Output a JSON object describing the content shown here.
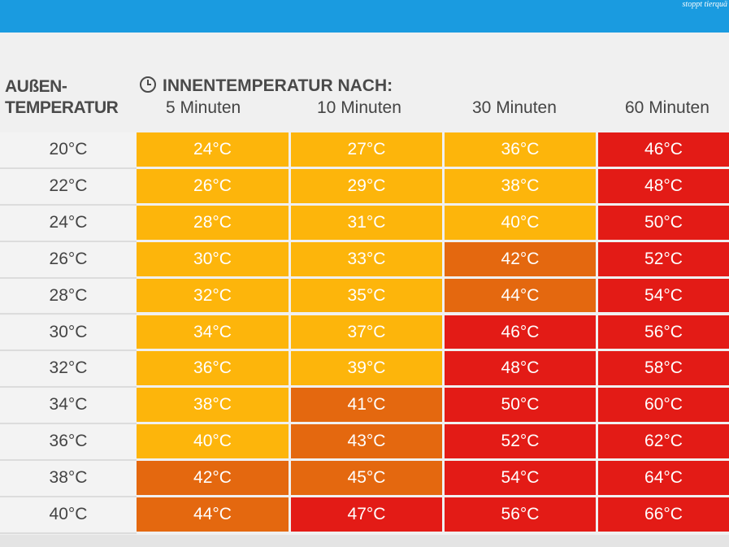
{
  "brand_text": "stoppt tierquä",
  "header": {
    "row_header": [
      "AUßEN-",
      "TEMPERATUR"
    ],
    "title": "INNENTEMPERATUR NACH:"
  },
  "colors": {
    "yellow": "#fdb50b",
    "orange": "#e4680f",
    "red": "#e31b16",
    "banner": "#1a9be0"
  },
  "chart_data": {
    "type": "table",
    "title": "INNENTEMPERATUR NACH:",
    "row_header": "AUßEN-TEMPERATUR",
    "columns": [
      "5 Minuten",
      "10 Minuten",
      "30 Minuten",
      "60 Minuten"
    ],
    "rows": [
      {
        "label": "20°C",
        "values": [
          "24°C",
          "27°C",
          "36°C",
          "46°C"
        ],
        "levels": [
          "yellow",
          "yellow",
          "yellow",
          "red"
        ]
      },
      {
        "label": "22°C",
        "values": [
          "26°C",
          "29°C",
          "38°C",
          "48°C"
        ],
        "levels": [
          "yellow",
          "yellow",
          "yellow",
          "red"
        ]
      },
      {
        "label": "24°C",
        "values": [
          "28°C",
          "31°C",
          "40°C",
          "50°C"
        ],
        "levels": [
          "yellow",
          "yellow",
          "yellow",
          "red"
        ]
      },
      {
        "label": "26°C",
        "values": [
          "30°C",
          "33°C",
          "42°C",
          "52°C"
        ],
        "levels": [
          "yellow",
          "yellow",
          "orange",
          "red"
        ]
      },
      {
        "label": "28°C",
        "values": [
          "32°C",
          "35°C",
          "44°C",
          "54°C"
        ],
        "levels": [
          "yellow",
          "yellow",
          "orange",
          "red"
        ]
      },
      {
        "label": "30°C",
        "values": [
          "34°C",
          "37°C",
          "46°C",
          "56°C"
        ],
        "levels": [
          "yellow",
          "yellow",
          "red",
          "red"
        ]
      },
      {
        "label": "32°C",
        "values": [
          "36°C",
          "39°C",
          "48°C",
          "58°C"
        ],
        "levels": [
          "yellow",
          "yellow",
          "red",
          "red"
        ]
      },
      {
        "label": "34°C",
        "values": [
          "38°C",
          "41°C",
          "50°C",
          "60°C"
        ],
        "levels": [
          "yellow",
          "orange",
          "red",
          "red"
        ]
      },
      {
        "label": "36°C",
        "values": [
          "40°C",
          "43°C",
          "52°C",
          "62°C"
        ],
        "levels": [
          "yellow",
          "orange",
          "red",
          "red"
        ]
      },
      {
        "label": "38°C",
        "values": [
          "42°C",
          "45°C",
          "54°C",
          "64°C"
        ],
        "levels": [
          "orange",
          "orange",
          "red",
          "red"
        ]
      },
      {
        "label": "40°C",
        "values": [
          "44°C",
          "47°C",
          "56°C",
          "66°C"
        ],
        "levels": [
          "orange",
          "red",
          "red",
          "red"
        ]
      }
    ]
  }
}
